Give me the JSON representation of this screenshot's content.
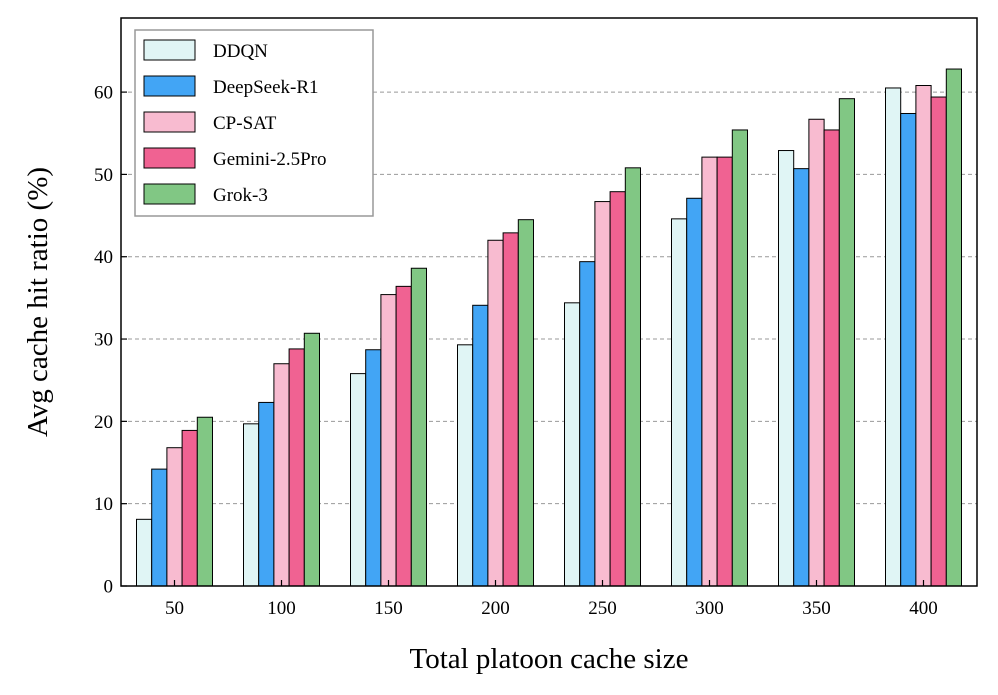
{
  "chart_data": {
    "type": "bar",
    "title": "",
    "xlabel": "Total platoon cache size",
    "ylabel": "Avg cache hit ratio (%)",
    "categories": [
      "50",
      "100",
      "150",
      "200",
      "250",
      "300",
      "350",
      "400"
    ],
    "ylim": [
      0,
      69
    ],
    "yticks": [
      0,
      10,
      20,
      30,
      40,
      50,
      60
    ],
    "grid": "horizontal dashed",
    "legend_position": "top-left",
    "series": [
      {
        "name": "DDQN",
        "color": "#e0f5f5",
        "values": [
          8.1,
          19.7,
          25.8,
          29.3,
          34.4,
          44.6,
          52.9,
          60.5
        ]
      },
      {
        "name": "DeepSeek-R1",
        "color": "#42a5f5",
        "values": [
          14.2,
          22.3,
          28.7,
          34.1,
          39.4,
          47.1,
          50.7,
          57.4
        ]
      },
      {
        "name": "CP-SAT",
        "color": "#f8bbd0",
        "values": [
          16.8,
          27.0,
          35.4,
          42.0,
          46.7,
          52.1,
          56.7,
          60.8
        ]
      },
      {
        "name": "Gemini-2.5Pro",
        "color": "#f06292",
        "values": [
          18.9,
          28.8,
          36.4,
          42.9,
          47.9,
          52.1,
          55.4,
          59.4
        ]
      },
      {
        "name": "Grok-3",
        "color": "#81c784",
        "values": [
          20.5,
          30.7,
          38.6,
          44.5,
          50.8,
          55.4,
          59.2,
          62.8
        ]
      }
    ]
  }
}
